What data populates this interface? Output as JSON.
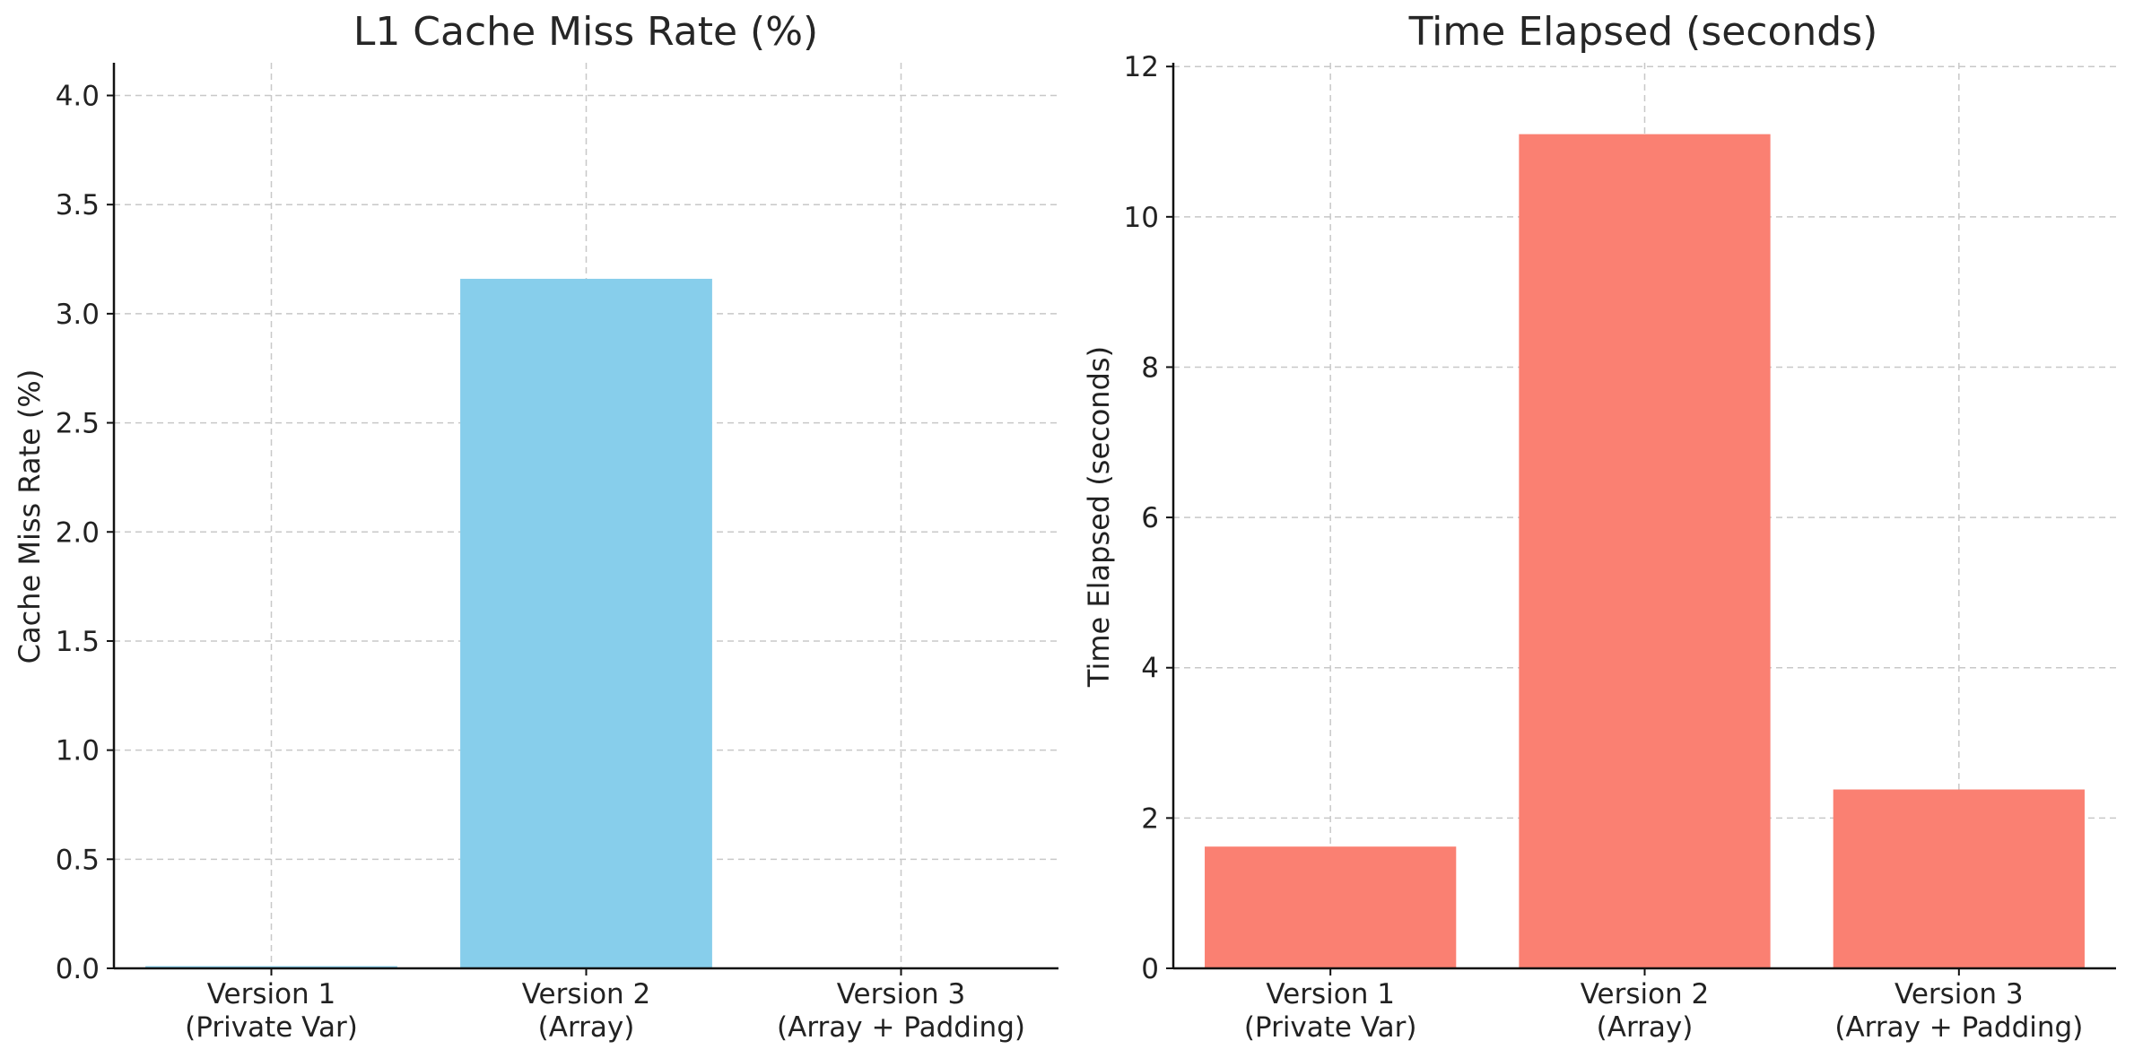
{
  "chart_data": [
    {
      "type": "bar",
      "title": "L1 Cache Miss Rate (%)",
      "xlabel": "",
      "ylabel": "Cache Miss Rate (%)",
      "categories": [
        "Version 1\n(Private Var)",
        "Version 2\n(Array)",
        "Version 3\n(Array + Padding)"
      ],
      "values": [
        0.01,
        3.16,
        0.0
      ],
      "ylim": [
        0,
        4.15
      ],
      "yticks": [
        "0.0",
        "0.5",
        "1.0",
        "1.5",
        "2.0",
        "2.5",
        "3.0",
        "3.5",
        "4.0"
      ],
      "grid": true,
      "legend": "none",
      "color": "#87ceeb"
    },
    {
      "type": "bar",
      "title": "Time Elapsed (seconds)",
      "xlabel": "",
      "ylabel": "Time Elapsed (seconds)",
      "categories": [
        "Version 1\n(Private Var)",
        "Version 2\n(Array)",
        "Version 3\n(Array + Padding)"
      ],
      "values": [
        1.62,
        11.1,
        2.38
      ],
      "ylim": [
        0,
        12.05
      ],
      "yticks": [
        "0",
        "2",
        "4",
        "6",
        "8",
        "10",
        "12"
      ],
      "grid": true,
      "legend": "none",
      "color": "#fa8072"
    }
  ]
}
